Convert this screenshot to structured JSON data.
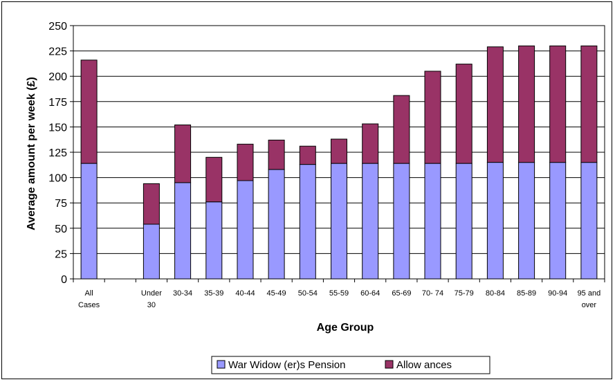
{
  "chart_data": {
    "type": "bar",
    "stacked": true,
    "categories": [
      "All Cases",
      "",
      "Under 30",
      "30-34",
      "35-39",
      "40-44",
      "45-49",
      "50-54",
      "55-59",
      "60-64",
      "65-69",
      "70- 74",
      "75-79",
      "80-84",
      "85-89",
      "90-94",
      "95 and over"
    ],
    "category_lines": [
      [
        "All",
        "Cases"
      ],
      [],
      [
        "Under",
        "30"
      ],
      [
        "30-34"
      ],
      [
        "35-39"
      ],
      [
        "40-44"
      ],
      [
        "45-49"
      ],
      [
        "50-54"
      ],
      [
        "55-59"
      ],
      [
        "60-64"
      ],
      [
        "65-69"
      ],
      [
        "70- 74"
      ],
      [
        "75-79"
      ],
      [
        "80-84"
      ],
      [
        "85-89"
      ],
      [
        "90-94"
      ],
      [
        "95 and",
        "over"
      ]
    ],
    "series": [
      {
        "name": "War Widow (er)s Pension",
        "color": "#9999ff",
        "values": [
          114,
          null,
          54,
          95,
          76,
          97,
          108,
          113,
          114,
          114,
          114,
          114,
          114,
          115,
          115,
          115,
          115
        ]
      },
      {
        "name": "Allow ances",
        "color": "#993366",
        "values": [
          102,
          null,
          40,
          57,
          44,
          36,
          29,
          18,
          24,
          39,
          67,
          91,
          98,
          114,
          115,
          115,
          115
        ]
      }
    ],
    "xlabel": "Age Group",
    "ylabel": "Average amount per week (£)",
    "ylim": [
      0,
      250
    ],
    "yticks": [
      0,
      25,
      50,
      75,
      100,
      125,
      150,
      175,
      200,
      225,
      250
    ],
    "grid": true,
    "legend": "bottom"
  }
}
